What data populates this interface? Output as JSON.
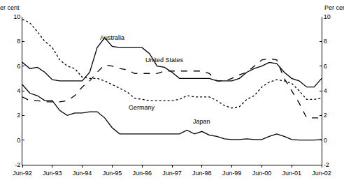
{
  "chart_data": {
    "type": "line",
    "ylabel": "Per cent",
    "y2label": "Per cent",
    "categories": [
      "Jun-92",
      null,
      null,
      null,
      "Jun-93",
      null,
      null,
      null,
      "Jun-94",
      null,
      null,
      null,
      "Jun-95",
      null,
      null,
      null,
      "Jun-96",
      null,
      null,
      null,
      "Jun-97",
      null,
      null,
      null,
      "Jun-98",
      null,
      null,
      null,
      "Jun-99",
      null,
      null,
      null,
      "Jun-00",
      null,
      null,
      null,
      "Jun-01",
      null,
      null,
      null,
      "Jun-02"
    ],
    "ylim": [
      -2,
      10
    ],
    "yticks": [
      -2,
      0,
      2,
      4,
      6,
      8,
      10
    ],
    "y2lim": [
      -2,
      10
    ],
    "y2ticks": [
      -2,
      0,
      2,
      4,
      6,
      8,
      10
    ],
    "grid": false,
    "series": [
      {
        "name": "Australia",
        "color": "#000000",
        "line_style": "solid",
        "values": [
          6.3,
          5.8,
          5.9,
          5.5,
          4.9,
          4.8,
          4.8,
          4.8,
          4.8,
          5.5,
          7.5,
          8.3,
          7.6,
          7.5,
          7.5,
          7.5,
          7.5,
          7.0,
          6.0,
          5.9,
          5.5,
          5.0,
          5.0,
          5.0,
          5.0,
          5.0,
          4.8,
          4.8,
          4.8,
          5.0,
          5.5,
          5.8,
          6.0,
          6.3,
          6.2,
          5.5,
          5.0,
          4.8,
          4.3,
          4.3,
          5.0
        ]
      },
      {
        "name": "United States",
        "color": "#000000",
        "line_style": "dash",
        "values": [
          3.5,
          3.2,
          3.2,
          3.1,
          3.1,
          3.1,
          3.2,
          3.6,
          4.3,
          4.8,
          5.5,
          6.1,
          6.0,
          5.8,
          5.7,
          5.4,
          5.4,
          5.4,
          5.4,
          5.6,
          5.6,
          5.6,
          5.6,
          5.6,
          5.6,
          5.4,
          4.8,
          4.8,
          5.0,
          5.3,
          5.5,
          6.0,
          6.5,
          6.6,
          6.5,
          5.0,
          4.0,
          3.0,
          1.8,
          1.8,
          1.8
        ]
      },
      {
        "name": "Germany",
        "color": "#000000",
        "line_style": "dot",
        "values": [
          9.8,
          9.5,
          8.8,
          8.0,
          7.5,
          6.5,
          6.0,
          5.8,
          5.1,
          5.0,
          5.0,
          4.8,
          4.5,
          4.2,
          3.9,
          3.4,
          3.3,
          3.2,
          3.2,
          3.2,
          3.2,
          3.3,
          3.6,
          3.5,
          3.5,
          3.5,
          3.2,
          2.8,
          2.6,
          2.7,
          3.3,
          3.6,
          4.3,
          4.7,
          4.9,
          4.8,
          4.6,
          4.0,
          3.3,
          3.3,
          3.4
        ]
      },
      {
        "name": "Japan",
        "color": "#000000",
        "line_style": "solid",
        "values": [
          4.5,
          3.8,
          3.6,
          3.2,
          3.2,
          2.4,
          2.0,
          2.2,
          2.2,
          2.3,
          2.3,
          1.8,
          1.0,
          0.5,
          0.5,
          0.5,
          0.5,
          0.5,
          0.5,
          0.5,
          0.5,
          0.5,
          0.8,
          0.5,
          0.7,
          0.4,
          0.3,
          0.1,
          0.05,
          0.05,
          0.1,
          0.05,
          0.05,
          0.3,
          0.5,
          0.3,
          0.05,
          0.0,
          0.0,
          0.0,
          0.05
        ]
      }
    ]
  }
}
